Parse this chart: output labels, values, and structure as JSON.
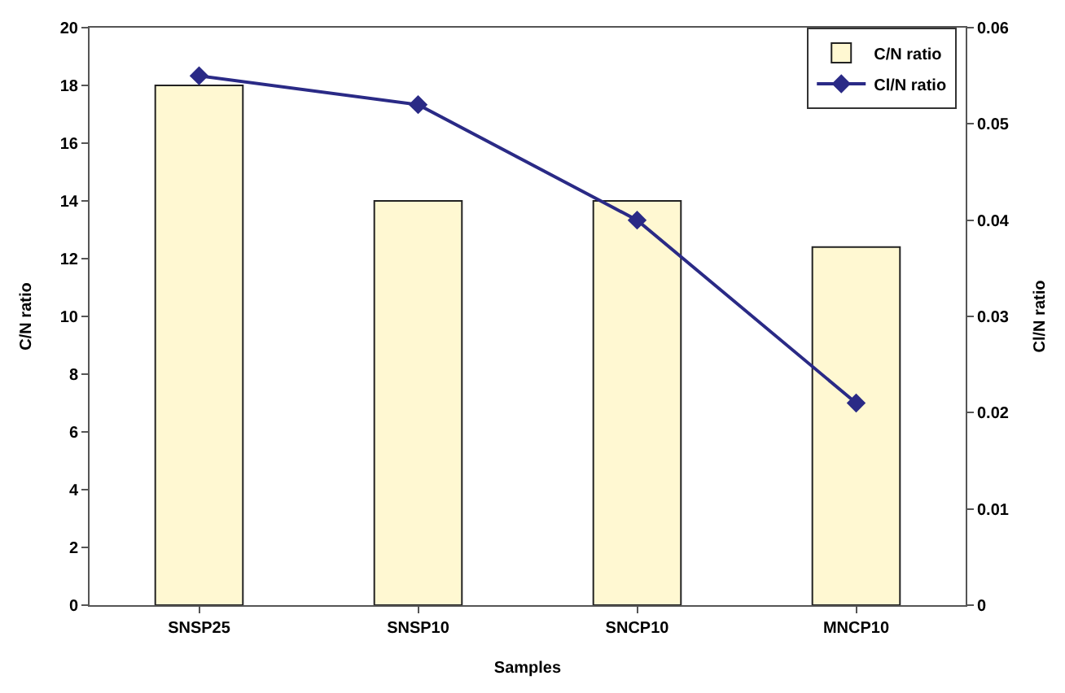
{
  "chart_data": {
    "type": "bar",
    "xlabel": "Samples",
    "ylabel": "C/N ratio",
    "y2label": "Cl/N ratio",
    "categories": [
      "SNSP25",
      "SNSP10",
      "SNCP10",
      "MNCP10"
    ],
    "series": [
      {
        "name": "C/N ratio",
        "color": "#fff8d2",
        "values": [
          18,
          14,
          14,
          12.4
        ]
      },
      {
        "name": "Cl/N ratio",
        "type": "line",
        "axis": "y2",
        "color": "#2a2a86",
        "marker": "diamond",
        "values": [
          0.055,
          0.052,
          0.04,
          0.021
        ]
      }
    ],
    "ylim": [
      0,
      20
    ],
    "yticks": [
      0,
      2,
      4,
      6,
      8,
      10,
      12,
      14,
      16,
      18,
      20
    ],
    "y2lim": [
      0,
      0.06
    ],
    "y2ticks": [
      {
        "value": 0,
        "label": "0"
      },
      {
        "value": 0.01,
        "label": "0.01"
      },
      {
        "value": 0.02,
        "label": "0.02"
      },
      {
        "value": 0.03,
        "label": "0.03"
      },
      {
        "value": 0.04,
        "label": "0.04"
      },
      {
        "value": 0.05,
        "label": "0.05"
      },
      {
        "value": 0.06,
        "label": "0.06"
      }
    ],
    "legend": "top right"
  }
}
